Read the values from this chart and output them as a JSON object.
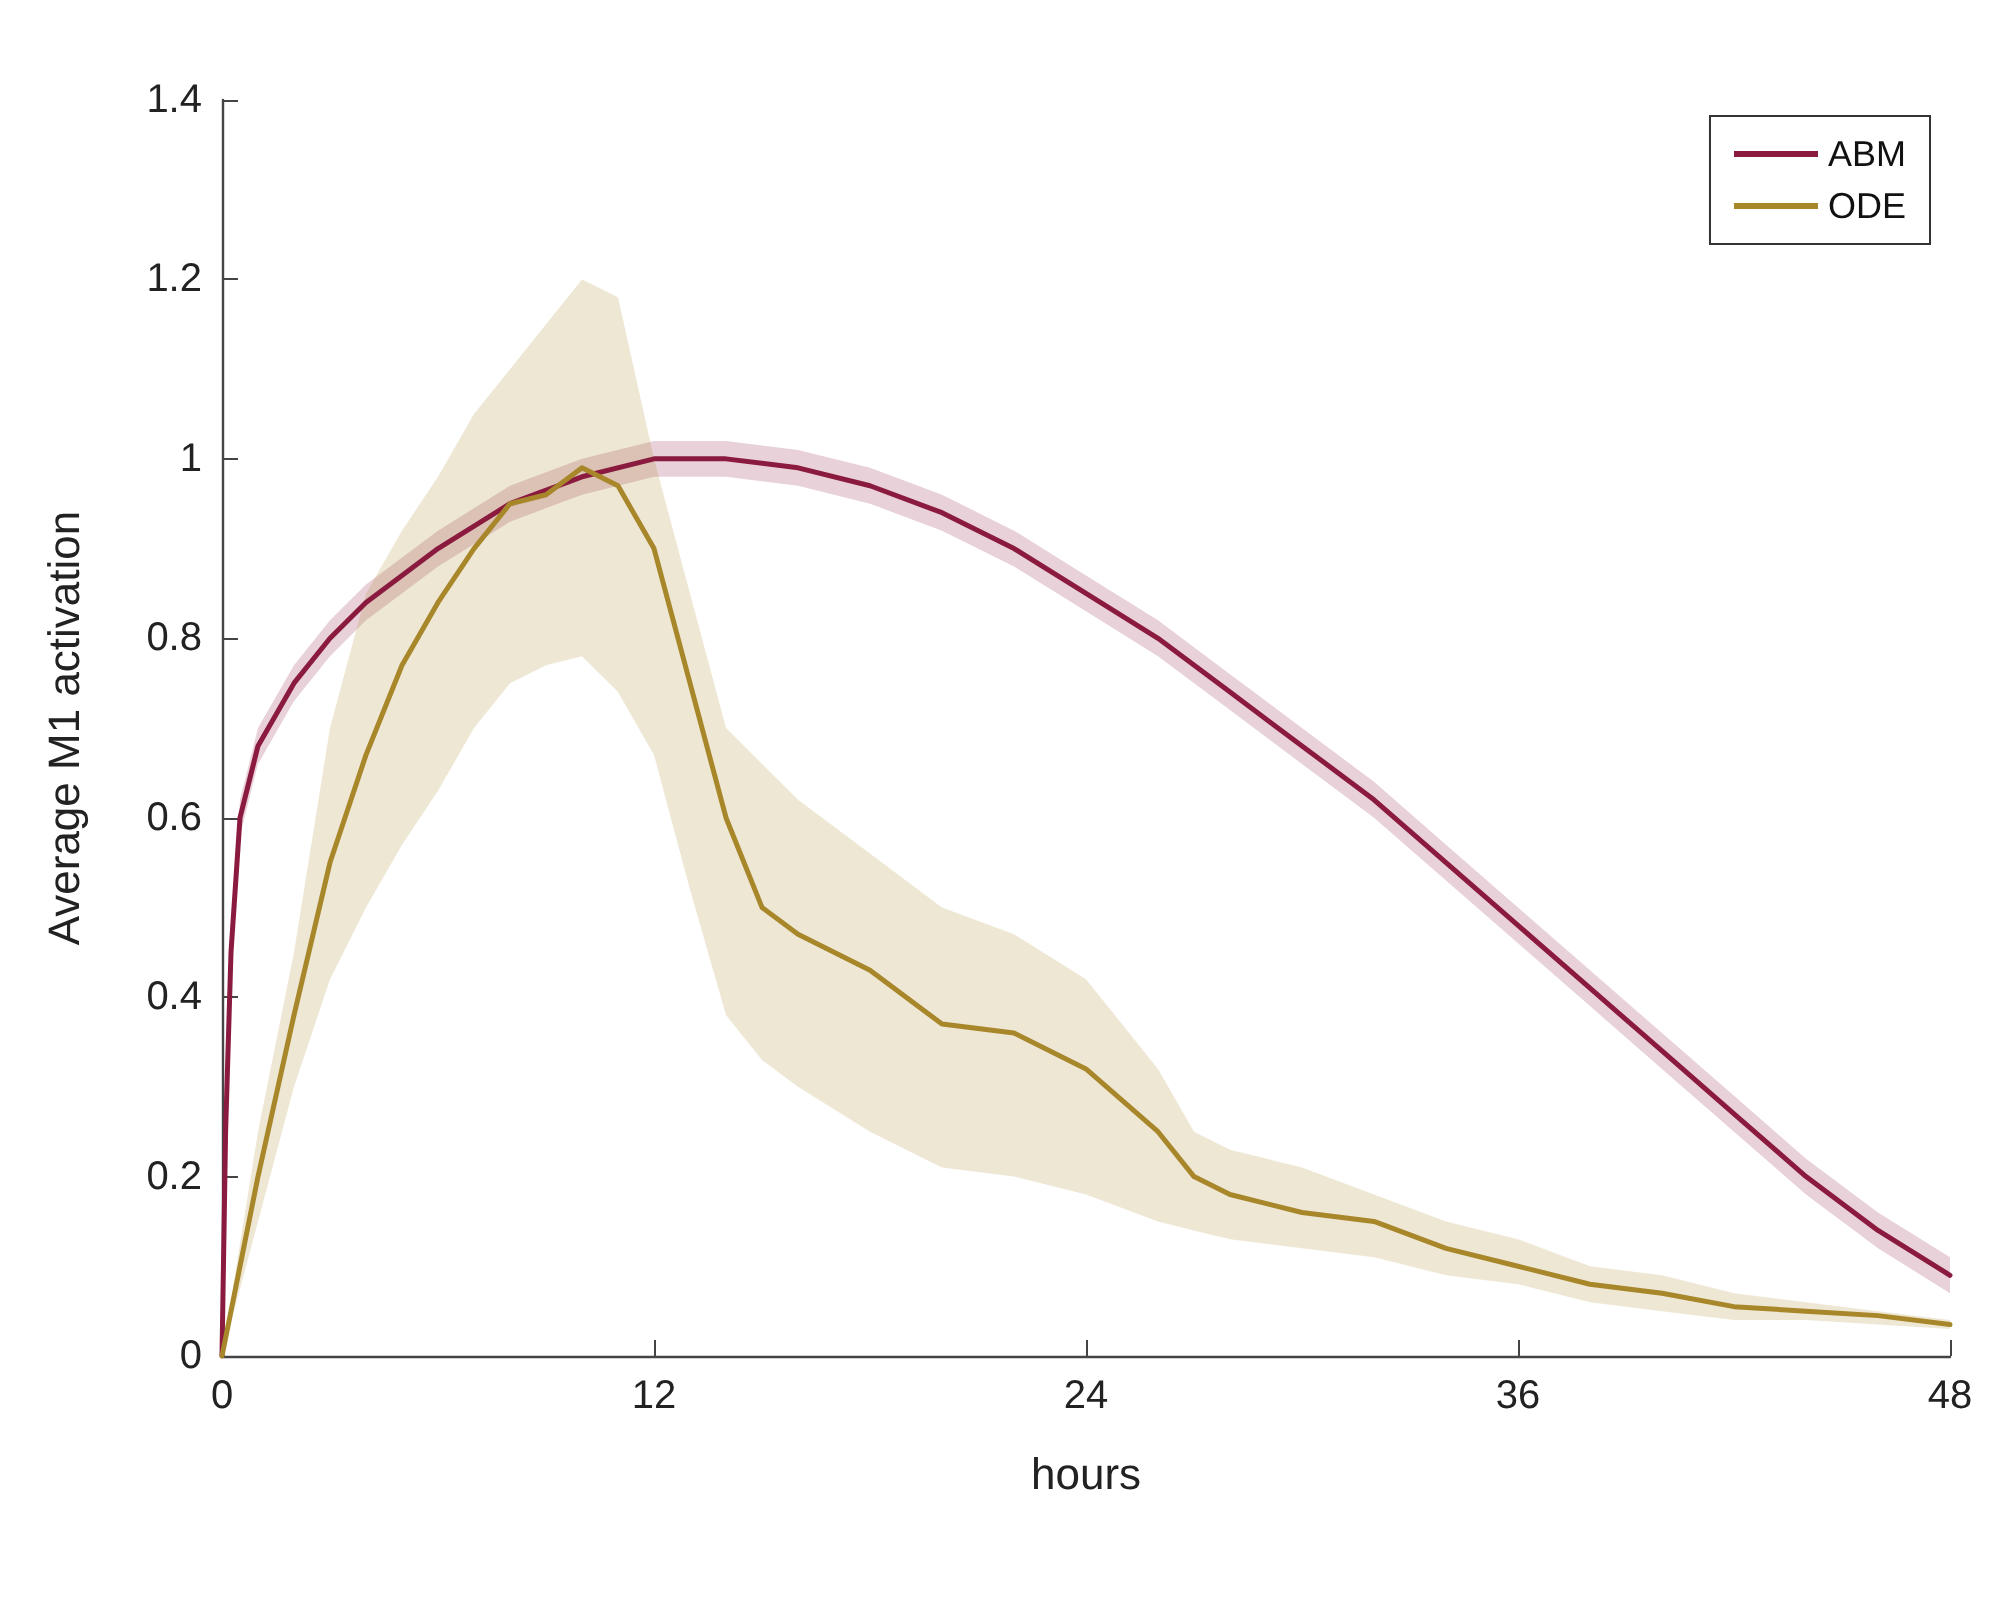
{
  "chart_data": {
    "type": "line",
    "xlabel": "hours",
    "ylabel": "Average M1 activation",
    "xlim": [
      0,
      48
    ],
    "xticks": [
      0,
      12,
      24,
      36,
      48
    ],
    "ylim": [
      0,
      1.4
    ],
    "yticks": [
      0,
      0.2,
      0.4,
      0.6,
      0.8,
      1,
      1.2,
      1.4
    ],
    "legend": "top right",
    "marker": "none",
    "line_style": "solid",
    "series": [
      {
        "name": "ABM",
        "color": "#8b1a3f",
        "x": [
          0,
          0.1,
          0.25,
          0.5,
          1,
          2,
          3,
          4,
          6,
          8,
          10,
          12,
          14,
          16,
          18,
          20,
          22,
          24,
          26,
          28,
          30,
          32,
          34,
          36,
          38,
          40,
          42,
          44,
          46,
          48
        ],
        "values": [
          0,
          0.25,
          0.45,
          0.6,
          0.68,
          0.75,
          0.8,
          0.84,
          0.9,
          0.95,
          0.98,
          1.0,
          1.0,
          0.99,
          0.97,
          0.94,
          0.9,
          0.85,
          0.8,
          0.74,
          0.68,
          0.62,
          0.55,
          0.48,
          0.41,
          0.34,
          0.27,
          0.2,
          0.14,
          0.09
        ],
        "lower": [
          0,
          0.23,
          0.43,
          0.58,
          0.66,
          0.73,
          0.78,
          0.82,
          0.88,
          0.93,
          0.96,
          0.98,
          0.98,
          0.97,
          0.95,
          0.92,
          0.88,
          0.83,
          0.78,
          0.72,
          0.66,
          0.6,
          0.53,
          0.46,
          0.39,
          0.32,
          0.25,
          0.18,
          0.12,
          0.07
        ],
        "upper": [
          0,
          0.27,
          0.47,
          0.62,
          0.7,
          0.77,
          0.82,
          0.86,
          0.92,
          0.97,
          1.0,
          1.02,
          1.02,
          1.01,
          0.99,
          0.96,
          0.92,
          0.87,
          0.82,
          0.76,
          0.7,
          0.64,
          0.57,
          0.5,
          0.43,
          0.36,
          0.29,
          0.22,
          0.16,
          0.11
        ]
      },
      {
        "name": "ODE",
        "color": "#a8862a",
        "x": [
          0,
          1,
          2,
          3,
          4,
          5,
          6,
          7,
          8,
          9,
          10,
          11,
          12,
          13,
          14,
          15,
          16,
          18,
          20,
          22,
          24,
          26,
          27,
          28,
          30,
          32,
          34,
          36,
          38,
          40,
          42,
          44,
          46,
          48
        ],
        "values": [
          0,
          0.2,
          0.38,
          0.55,
          0.67,
          0.77,
          0.84,
          0.9,
          0.95,
          0.96,
          0.99,
          0.97,
          0.9,
          0.75,
          0.6,
          0.5,
          0.47,
          0.43,
          0.37,
          0.36,
          0.32,
          0.25,
          0.2,
          0.18,
          0.16,
          0.15,
          0.12,
          0.1,
          0.08,
          0.07,
          0.055,
          0.05,
          0.045,
          0.035
        ],
        "upper": [
          0,
          0.25,
          0.45,
          0.7,
          0.85,
          0.92,
          0.98,
          1.05,
          1.1,
          1.15,
          1.2,
          1.18,
          1.0,
          0.85,
          0.7,
          0.66,
          0.62,
          0.56,
          0.5,
          0.47,
          0.42,
          0.32,
          0.25,
          0.23,
          0.21,
          0.18,
          0.15,
          0.13,
          0.1,
          0.09,
          0.07,
          0.06,
          0.05,
          0.04
        ],
        "lower": [
          0,
          0.15,
          0.3,
          0.42,
          0.5,
          0.57,
          0.63,
          0.7,
          0.75,
          0.77,
          0.78,
          0.74,
          0.67,
          0.52,
          0.38,
          0.33,
          0.3,
          0.25,
          0.21,
          0.2,
          0.18,
          0.15,
          0.14,
          0.13,
          0.12,
          0.11,
          0.09,
          0.08,
          0.06,
          0.05,
          0.04,
          0.04,
          0.035,
          0.03
        ]
      }
    ]
  }
}
